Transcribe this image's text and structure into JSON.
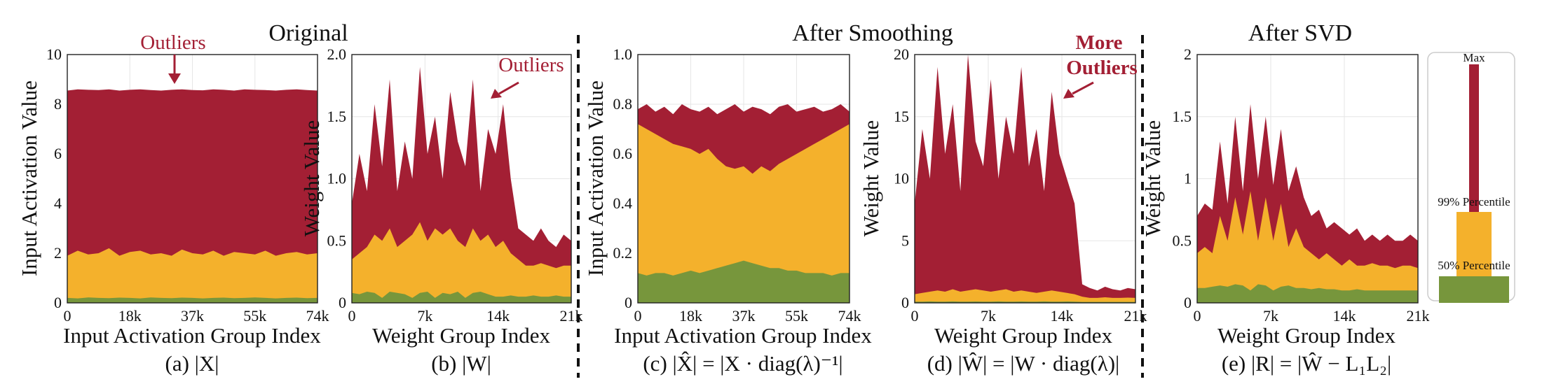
{
  "colors": {
    "max": "#a31f34",
    "p99": "#f4b12c",
    "p50": "#77963c"
  },
  "section_titles": [
    "Original",
    "After Smoothing",
    "After SVD"
  ],
  "legend": {
    "items": [
      "Max",
      "99% Percentile",
      "50% Percentile"
    ]
  },
  "chart_data": [
    {
      "id": "a",
      "type": "area",
      "caption": "(a)  |X|",
      "xlabel": "Input Activation Group Index",
      "ylabel": "Input Activation Value",
      "xlim": [
        0,
        74
      ],
      "ylim": [
        0,
        10
      ],
      "xticks": [
        "0",
        "18k",
        "37k",
        "55k",
        "74k"
      ],
      "yticks": [
        "0",
        "2",
        "4",
        "6",
        "8",
        "10"
      ],
      "annotation": "Outliers",
      "series": [
        {
          "name": "Max",
          "values": [
            8.55,
            8.6,
            8.58,
            8.57,
            8.6,
            8.55,
            8.58,
            8.6,
            8.57,
            8.55,
            8.58,
            8.6,
            8.57,
            8.56,
            8.6,
            8.58,
            8.55,
            8.6,
            8.58,
            8.57,
            8.55,
            8.58,
            8.6,
            8.57,
            8.55
          ]
        },
        {
          "name": "99% Percentile",
          "values": [
            1.9,
            2.1,
            1.95,
            2.0,
            2.2,
            1.9,
            2.05,
            2.1,
            1.95,
            2.0,
            1.9,
            2.15,
            2.0,
            1.95,
            2.1,
            1.9,
            2.05,
            2.0,
            1.95,
            2.1,
            1.9,
            2.0,
            2.05,
            1.95,
            2.0
          ]
        },
        {
          "name": "50% Percentile",
          "values": [
            0.2,
            0.18,
            0.22,
            0.2,
            0.19,
            0.21,
            0.2,
            0.18,
            0.22,
            0.2,
            0.19,
            0.21,
            0.2,
            0.18,
            0.2,
            0.21,
            0.19,
            0.2,
            0.22,
            0.2,
            0.18,
            0.2,
            0.21,
            0.19,
            0.2
          ]
        }
      ]
    },
    {
      "id": "b",
      "type": "area",
      "caption": "(b)  |W|",
      "xlabel": "Weight Group Index",
      "ylabel": "Weight Value",
      "xlim": [
        0,
        21
      ],
      "ylim": [
        0,
        2.0
      ],
      "xticks": [
        "0",
        "7k",
        "14k",
        "21k"
      ],
      "yticks": [
        "0",
        "0.5",
        "1.0",
        "1.5",
        "2.0"
      ],
      "annotation": "Outliers",
      "series": [
        {
          "name": "Max",
          "values": [
            0.8,
            1.2,
            0.9,
            1.6,
            1.1,
            1.8,
            0.9,
            1.3,
            1.0,
            1.9,
            1.2,
            1.5,
            1.0,
            1.7,
            1.3,
            1.1,
            1.8,
            0.9,
            1.4,
            1.2,
            1.6,
            1.0,
            0.6,
            0.55,
            0.5,
            0.6,
            0.5,
            0.45,
            0.55,
            0.5
          ]
        },
        {
          "name": "99% Percentile",
          "values": [
            0.35,
            0.4,
            0.45,
            0.55,
            0.5,
            0.6,
            0.45,
            0.5,
            0.55,
            0.65,
            0.5,
            0.6,
            0.55,
            0.6,
            0.5,
            0.45,
            0.6,
            0.5,
            0.55,
            0.45,
            0.5,
            0.4,
            0.35,
            0.3,
            0.3,
            0.32,
            0.3,
            0.28,
            0.3,
            0.3
          ]
        },
        {
          "name": "50% Percentile",
          "values": [
            0.08,
            0.07,
            0.09,
            0.08,
            0.04,
            0.09,
            0.08,
            0.07,
            0.04,
            0.08,
            0.09,
            0.04,
            0.08,
            0.07,
            0.09,
            0.04,
            0.08,
            0.09,
            0.07,
            0.05,
            0.05,
            0.06,
            0.05,
            0.05,
            0.06,
            0.05,
            0.05,
            0.06,
            0.05,
            0.05
          ]
        }
      ]
    },
    {
      "id": "c",
      "type": "area",
      "caption": "(c)  |X̂| = |X · diag(λ)⁻¹|",
      "xlabel": "Input Activation Group Index",
      "ylabel": "Input Activation Value",
      "xlim": [
        0,
        74
      ],
      "ylim": [
        0,
        1.0
      ],
      "xticks": [
        "0",
        "18k",
        "37k",
        "55k",
        "74k"
      ],
      "yticks": [
        "0",
        "0.2",
        "0.4",
        "0.6",
        "0.8",
        "1.0"
      ],
      "series": [
        {
          "name": "Max",
          "values": [
            0.78,
            0.8,
            0.77,
            0.79,
            0.76,
            0.8,
            0.78,
            0.77,
            0.79,
            0.76,
            0.78,
            0.8,
            0.77,
            0.79,
            0.78,
            0.76,
            0.79,
            0.8,
            0.77,
            0.78,
            0.79,
            0.77,
            0.78,
            0.8,
            0.77
          ]
        },
        {
          "name": "99% Percentile",
          "values": [
            0.72,
            0.7,
            0.68,
            0.66,
            0.64,
            0.63,
            0.62,
            0.6,
            0.62,
            0.58,
            0.55,
            0.54,
            0.55,
            0.52,
            0.55,
            0.53,
            0.56,
            0.58,
            0.6,
            0.62,
            0.64,
            0.66,
            0.68,
            0.7,
            0.72
          ]
        },
        {
          "name": "50% Percentile",
          "values": [
            0.12,
            0.11,
            0.12,
            0.12,
            0.11,
            0.12,
            0.13,
            0.12,
            0.13,
            0.14,
            0.15,
            0.16,
            0.17,
            0.16,
            0.15,
            0.14,
            0.14,
            0.13,
            0.13,
            0.12,
            0.12,
            0.12,
            0.11,
            0.12,
            0.12
          ]
        }
      ]
    },
    {
      "id": "d",
      "type": "area",
      "caption": "(d)  |Ŵ| = |W · diag(λ)|",
      "xlabel": "Weight Group Index",
      "ylabel": "Weight Value",
      "xlim": [
        0,
        21
      ],
      "ylim": [
        0,
        20
      ],
      "xticks": [
        "0",
        "7k",
        "14k",
        "21k"
      ],
      "yticks": [
        "0",
        "5",
        "10",
        "15",
        "20"
      ],
      "annotation_lines": [
        "More",
        "Outliers"
      ],
      "series": [
        {
          "name": "Max",
          "values": [
            8,
            14,
            10,
            19,
            12,
            16,
            9,
            20,
            13,
            11,
            18,
            10,
            15,
            12,
            19,
            11,
            14,
            9,
            17,
            12,
            10,
            8,
            1.5,
            1.2,
            1.0,
            1.3,
            1.1,
            1.0,
            1.2,
            1.1
          ]
        },
        {
          "name": "99% Percentile",
          "values": [
            0.7,
            0.8,
            0.9,
            1.0,
            0.9,
            1.1,
            0.9,
            1.0,
            1.1,
            1.0,
            0.9,
            1.0,
            1.1,
            0.9,
            1.0,
            0.9,
            0.8,
            0.9,
            1.0,
            0.9,
            0.8,
            0.7,
            0.5,
            0.4,
            0.4,
            0.45,
            0.4,
            0.4,
            0.42,
            0.4
          ]
        },
        {
          "name": "50% Percentile",
          "values": [
            0.1,
            0.1,
            0.12,
            0.1,
            0.1,
            0.12,
            0.1,
            0.1,
            0.11,
            0.1,
            0.1,
            0.12,
            0.1,
            0.1,
            0.11,
            0.1,
            0.1,
            0.12,
            0.1,
            0.1,
            0.11,
            0.1,
            0.08,
            0.08,
            0.08,
            0.08,
            0.08,
            0.08,
            0.08,
            0.08
          ]
        }
      ]
    },
    {
      "id": "e",
      "type": "area",
      "caption": "(e)  |R| = |Ŵ − L₁L₂|",
      "xlabel": "Weight Group Index",
      "ylabel": "Weight Value",
      "xlim": [
        0,
        21
      ],
      "ylim": [
        0,
        2
      ],
      "xticks": [
        "0",
        "7k",
        "14k",
        "21k"
      ],
      "yticks": [
        "0",
        "0.5",
        "1",
        "1.5",
        "2"
      ],
      "series": [
        {
          "name": "Max",
          "values": [
            0.7,
            0.8,
            0.75,
            1.3,
            0.8,
            1.5,
            0.9,
            1.6,
            1.0,
            1.5,
            0.95,
            1.4,
            0.9,
            1.1,
            0.85,
            0.7,
            0.75,
            0.6,
            0.65,
            0.6,
            0.55,
            0.6,
            0.5,
            0.55,
            0.5,
            0.55,
            0.5,
            0.5,
            0.55,
            0.5
          ]
        },
        {
          "name": "99% Percentile",
          "values": [
            0.4,
            0.45,
            0.4,
            0.7,
            0.5,
            0.85,
            0.55,
            0.9,
            0.5,
            0.85,
            0.5,
            0.8,
            0.45,
            0.6,
            0.45,
            0.4,
            0.35,
            0.4,
            0.35,
            0.3,
            0.35,
            0.3,
            0.3,
            0.32,
            0.3,
            0.3,
            0.28,
            0.3,
            0.3,
            0.28
          ]
        },
        {
          "name": "50% Percentile",
          "values": [
            0.12,
            0.12,
            0.13,
            0.14,
            0.13,
            0.15,
            0.14,
            0.1,
            0.15,
            0.14,
            0.1,
            0.13,
            0.14,
            0.12,
            0.12,
            0.11,
            0.12,
            0.11,
            0.11,
            0.1,
            0.1,
            0.11,
            0.1,
            0.1,
            0.1,
            0.1,
            0.1,
            0.1,
            0.1,
            0.1
          ]
        }
      ]
    }
  ]
}
